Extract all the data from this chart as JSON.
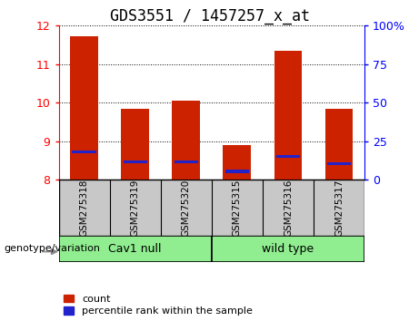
{
  "title": "GDS3551 / 1457257_x_at",
  "samples": [
    "GSM275318",
    "GSM275319",
    "GSM275320",
    "GSM275315",
    "GSM275316",
    "GSM275317"
  ],
  "red_tops": [
    11.72,
    9.85,
    10.05,
    8.9,
    11.35,
    9.85
  ],
  "blue_positions": [
    8.72,
    8.47,
    8.47,
    8.22,
    8.6,
    8.42
  ],
  "bar_bottom": 8.0,
  "ylim_left": [
    8,
    12
  ],
  "ylim_right": [
    0,
    100
  ],
  "yticks_left": [
    8,
    9,
    10,
    11,
    12
  ],
  "yticks_right": [
    0,
    25,
    50,
    75,
    100
  ],
  "ytick_labels_right": [
    "0",
    "25",
    "50",
    "75",
    "100%"
  ],
  "bar_color_red": "#CC2200",
  "bar_color_blue": "#2222CC",
  "bar_width": 0.55,
  "bg_label": "#C8C8C8",
  "title_fontsize": 12,
  "tick_fontsize": 9,
  "legend_red_label": "count",
  "legend_blue_label": "percentile rank within the sample",
  "genotype_label": "genotype/variation"
}
